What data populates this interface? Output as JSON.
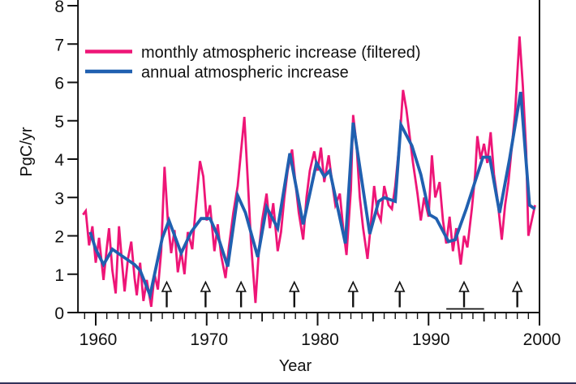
{
  "figure": {
    "background": "#ffffff",
    "bottom_edge_color": "#32325a",
    "axis_color": "#111111",
    "text_color": "#111111"
  },
  "chart_data": {
    "type": "line",
    "title": "",
    "xlabel": "Year",
    "ylabel": "PgC/yr",
    "xlim": [
      1958.4,
      2000
    ],
    "ylim": [
      0,
      8
    ],
    "grid": false,
    "legend_position": "top-left-inside",
    "x_major_ticks": [
      1960,
      1970,
      1980,
      1990,
      2000
    ],
    "x_major_tick_labels": [
      "1960",
      "1970",
      "1980",
      "1990",
      "2000"
    ],
    "x_mid_ticks": [
      1965,
      1975,
      1985,
      1995
    ],
    "x_minor_tick_step": 1,
    "y_ticks": [
      0,
      1,
      2,
      3,
      4,
      5,
      6,
      7,
      8
    ],
    "y_tick_labels": [
      "0",
      "1",
      "2",
      "3",
      "4",
      "5",
      "6",
      "7",
      "8"
    ],
    "series": [
      {
        "name": "monthly atmospheric increase (filtered)",
        "color": "#EE1577",
        "stroke_width": 2.8,
        "points": [
          [
            1958.85,
            2.55
          ],
          [
            1959.1,
            2.65
          ],
          [
            1959.4,
            1.75
          ],
          [
            1959.7,
            2.25
          ],
          [
            1960.0,
            1.3
          ],
          [
            1960.3,
            1.95
          ],
          [
            1960.7,
            0.85
          ],
          [
            1961.0,
            1.7
          ],
          [
            1961.2,
            2.2
          ],
          [
            1961.5,
            1.1
          ],
          [
            1961.8,
            0.5
          ],
          [
            1962.1,
            2.25
          ],
          [
            1962.4,
            1.2
          ],
          [
            1962.6,
            0.55
          ],
          [
            1962.9,
            1.4
          ],
          [
            1963.2,
            1.85
          ],
          [
            1963.5,
            0.9
          ],
          [
            1963.7,
            0.45
          ],
          [
            1964.0,
            1.3
          ],
          [
            1964.3,
            0.3
          ],
          [
            1964.6,
            0.85
          ],
          [
            1965.0,
            0.15
          ],
          [
            1965.3,
            1.0
          ],
          [
            1965.6,
            0.6
          ],
          [
            1965.9,
            1.6
          ],
          [
            1966.2,
            3.8
          ],
          [
            1966.5,
            2.4
          ],
          [
            1966.8,
            1.55
          ],
          [
            1967.1,
            2.15
          ],
          [
            1967.4,
            1.05
          ],
          [
            1967.7,
            1.6
          ],
          [
            1968.0,
            1.0
          ],
          [
            1968.3,
            2.1
          ],
          [
            1968.7,
            1.65
          ],
          [
            1969.0,
            2.7
          ],
          [
            1969.4,
            3.95
          ],
          [
            1969.7,
            3.55
          ],
          [
            1970.0,
            2.4
          ],
          [
            1970.3,
            2.8
          ],
          [
            1970.7,
            1.6
          ],
          [
            1971.0,
            2.3
          ],
          [
            1971.3,
            1.5
          ],
          [
            1971.7,
            0.9
          ],
          [
            1972.0,
            1.7
          ],
          [
            1972.4,
            2.6
          ],
          [
            1972.8,
            3.3
          ],
          [
            1973.1,
            4.2
          ],
          [
            1973.4,
            5.1
          ],
          [
            1973.7,
            3.5
          ],
          [
            1974.0,
            1.8
          ],
          [
            1974.4,
            0.25
          ],
          [
            1974.7,
            1.6
          ],
          [
            1975.0,
            2.4
          ],
          [
            1975.4,
            3.1
          ],
          [
            1975.7,
            2.2
          ],
          [
            1976.0,
            2.85
          ],
          [
            1976.4,
            1.6
          ],
          [
            1976.7,
            2.1
          ],
          [
            1977.0,
            3.0
          ],
          [
            1977.3,
            3.7
          ],
          [
            1977.7,
            4.25
          ],
          [
            1978.0,
            3.4
          ],
          [
            1978.3,
            2.6
          ],
          [
            1978.7,
            1.9
          ],
          [
            1979.0,
            3.0
          ],
          [
            1979.3,
            3.7
          ],
          [
            1979.7,
            4.2
          ],
          [
            1980.0,
            3.7
          ],
          [
            1980.3,
            4.3
          ],
          [
            1980.6,
            3.4
          ],
          [
            1981.0,
            4.1
          ],
          [
            1981.3,
            3.4
          ],
          [
            1981.6,
            2.8
          ],
          [
            1982.0,
            3.1
          ],
          [
            1982.3,
            2.2
          ],
          [
            1982.6,
            1.5
          ],
          [
            1983.0,
            3.2
          ],
          [
            1983.2,
            5.15
          ],
          [
            1983.5,
            4.4
          ],
          [
            1983.8,
            3.0
          ],
          [
            1984.1,
            2.2
          ],
          [
            1984.5,
            1.4
          ],
          [
            1984.8,
            2.3
          ],
          [
            1985.1,
            3.3
          ],
          [
            1985.4,
            2.6
          ],
          [
            1985.7,
            2.4
          ],
          [
            1986.0,
            3.3
          ],
          [
            1986.4,
            2.8
          ],
          [
            1986.7,
            2.7
          ],
          [
            1987.0,
            3.3
          ],
          [
            1987.4,
            4.5
          ],
          [
            1987.7,
            5.8
          ],
          [
            1988.0,
            5.3
          ],
          [
            1988.3,
            4.6
          ],
          [
            1988.6,
            3.9
          ],
          [
            1989.0,
            3.1
          ],
          [
            1989.3,
            2.4
          ],
          [
            1989.6,
            3.0
          ],
          [
            1990.0,
            2.5
          ],
          [
            1990.3,
            4.1
          ],
          [
            1990.6,
            3.0
          ],
          [
            1991.0,
            3.4
          ],
          [
            1991.3,
            2.4
          ],
          [
            1991.6,
            1.8
          ],
          [
            1991.9,
            2.5
          ],
          [
            1992.2,
            1.6
          ],
          [
            1992.5,
            2.2
          ],
          [
            1992.9,
            1.25
          ],
          [
            1993.2,
            2.0
          ],
          [
            1993.5,
            1.7
          ],
          [
            1993.9,
            2.7
          ],
          [
            1994.2,
            3.6
          ],
          [
            1994.4,
            4.6
          ],
          [
            1994.7,
            4.0
          ],
          [
            1995.0,
            4.4
          ],
          [
            1995.3,
            3.9
          ],
          [
            1995.6,
            4.7
          ],
          [
            1995.9,
            3.6
          ],
          [
            1996.2,
            3.0
          ],
          [
            1996.6,
            1.9
          ],
          [
            1996.9,
            2.8
          ],
          [
            1997.2,
            3.4
          ],
          [
            1997.5,
            4.3
          ],
          [
            1997.8,
            5.2
          ],
          [
            1998.0,
            6.2
          ],
          [
            1998.2,
            7.2
          ],
          [
            1998.5,
            5.9
          ],
          [
            1998.8,
            4.2
          ],
          [
            1999.0,
            2.0
          ],
          [
            1999.3,
            2.4
          ],
          [
            1999.6,
            2.8
          ]
        ]
      },
      {
        "name": "annual atmospheric increase",
        "color": "#2060B0",
        "stroke_width": 3.8,
        "points": [
          [
            1959.5,
            2.1
          ],
          [
            1960.0,
            1.65
          ],
          [
            1960.7,
            1.25
          ],
          [
            1961.5,
            1.65
          ],
          [
            1962.5,
            1.45
          ],
          [
            1963.5,
            1.25
          ],
          [
            1964.0,
            1.1
          ],
          [
            1964.9,
            0.45
          ],
          [
            1966.0,
            1.95
          ],
          [
            1966.6,
            2.4
          ],
          [
            1967.7,
            1.55
          ],
          [
            1968.6,
            2.1
          ],
          [
            1969.5,
            2.45
          ],
          [
            1970.3,
            2.45
          ],
          [
            1971.0,
            2.0
          ],
          [
            1971.9,
            1.2
          ],
          [
            1972.8,
            3.05
          ],
          [
            1973.5,
            2.6
          ],
          [
            1974.6,
            1.45
          ],
          [
            1975.4,
            2.75
          ],
          [
            1976.4,
            2.2
          ],
          [
            1977.5,
            4.15
          ],
          [
            1978.7,
            2.3
          ],
          [
            1979.9,
            3.9
          ],
          [
            1980.6,
            3.55
          ],
          [
            1981.1,
            3.7
          ],
          [
            1982.5,
            1.8
          ],
          [
            1983.2,
            4.95
          ],
          [
            1984.7,
            2.05
          ],
          [
            1985.5,
            2.9
          ],
          [
            1986.0,
            3.0
          ],
          [
            1987.0,
            2.9
          ],
          [
            1987.5,
            4.9
          ],
          [
            1988.5,
            4.35
          ],
          [
            1989.3,
            3.6
          ],
          [
            1990.1,
            2.55
          ],
          [
            1990.7,
            2.45
          ],
          [
            1991.8,
            1.85
          ],
          [
            1992.4,
            1.9
          ],
          [
            1993.4,
            2.7
          ],
          [
            1994.9,
            4.05
          ],
          [
            1995.5,
            4.05
          ],
          [
            1996.4,
            2.6
          ],
          [
            1997.3,
            4.0
          ],
          [
            1998.3,
            5.75
          ],
          [
            1999.1,
            2.8
          ],
          [
            1999.6,
            2.7
          ]
        ]
      }
    ],
    "annotations": {
      "arrow_marker_years": [
        1966.4,
        1969.9,
        1973.1,
        1977.9,
        1983.2,
        1987.4,
        1993.2,
        1998.0
      ],
      "underline_bar_year_range": [
        1991.6,
        1995.0
      ]
    }
  }
}
